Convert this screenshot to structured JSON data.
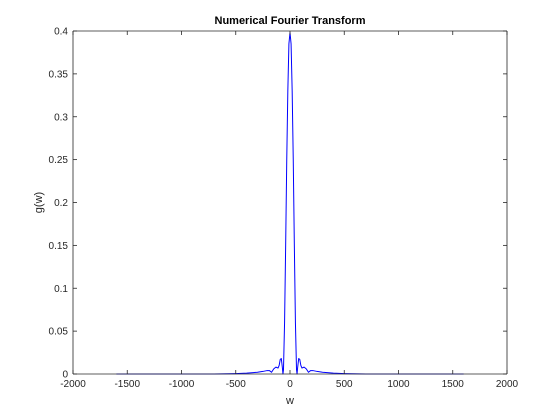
{
  "chart_data": {
    "type": "line",
    "title": "Numerical Fourier Transform",
    "xlabel": "w",
    "ylabel": "g(w)",
    "xlim": [
      -2000,
      2000
    ],
    "ylim": [
      0,
      0.4
    ],
    "grid": false,
    "legend": "none",
    "xticks": [
      -2000,
      -1500,
      -1000,
      -500,
      0,
      500,
      1000,
      1500,
      2000
    ],
    "xtick_labels": [
      "-2000",
      "-1500",
      "-1000",
      "-500",
      "0",
      "500",
      "1000",
      "1500",
      "2000"
    ],
    "yticks": [
      0,
      0.05,
      0.1,
      0.15,
      0.2,
      0.25,
      0.3,
      0.35,
      0.4
    ],
    "ytick_labels": [
      "0",
      "0.05",
      "0.1",
      "0.15",
      "0.2",
      "0.25",
      "0.3",
      "0.35",
      "0.4"
    ],
    "series": [
      {
        "color": "#0000ff",
        "x": [
          -1600,
          -700,
          -500,
          -400,
          -300,
          -250,
          -210,
          -200,
          -190,
          -170,
          -150,
          -130,
          -110,
          -100,
          -90,
          -80,
          -70,
          -65,
          -60,
          -50,
          -40,
          -30,
          -20,
          -10,
          0,
          10,
          20,
          30,
          40,
          50,
          60,
          65,
          70,
          80,
          90,
          100,
          110,
          130,
          150,
          170,
          190,
          200,
          210,
          250,
          300,
          400,
          500,
          700,
          1600
        ],
        "y": [
          0,
          0,
          0.0005,
          0.001,
          0.002,
          0.003,
          0.004,
          0.004,
          0.004,
          0.002,
          0.006,
          0.008,
          0.007,
          0.01,
          0.017,
          0.018,
          0.007,
          0,
          0.005,
          0.06,
          0.15,
          0.25,
          0.33,
          0.385,
          0.398,
          0.385,
          0.33,
          0.25,
          0.15,
          0.06,
          0.005,
          0,
          0.007,
          0.018,
          0.017,
          0.01,
          0.007,
          0.008,
          0.006,
          0.002,
          0.004,
          0.004,
          0.004,
          0.003,
          0.002,
          0.001,
          0.0005,
          0,
          0
        ]
      }
    ]
  }
}
